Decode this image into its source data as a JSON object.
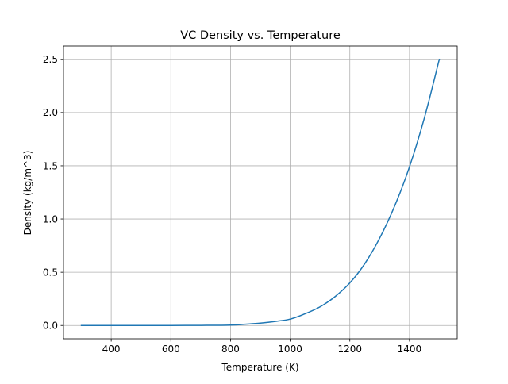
{
  "chart_data": {
    "type": "line",
    "title": "VC Density vs. Temperature",
    "xlabel": "Temperature (K)",
    "ylabel": "Density (kg/m^3)",
    "xlim": [
      240,
      1560
    ],
    "ylim": [
      -0.125,
      2.625
    ],
    "xticks": [
      400,
      600,
      800,
      1000,
      1200,
      1400
    ],
    "yticks": [
      0.0,
      0.5,
      1.0,
      1.5,
      2.0,
      2.5
    ],
    "xtick_labels": [
      "400",
      "600",
      "800",
      "1000",
      "1200",
      "1400"
    ],
    "ytick_labels": [
      "0.0",
      "0.5",
      "1.0",
      "1.5",
      "2.0",
      "2.5"
    ],
    "grid": true,
    "series": [
      {
        "color": "#1f77b4",
        "x": [
          300,
          400,
          500,
          600,
          700,
          800,
          850,
          900,
          950,
          1000,
          1050,
          1100,
          1150,
          1200,
          1250,
          1300,
          1350,
          1400,
          1450,
          1500
        ],
        "y": [
          0.0,
          0.0,
          0.0,
          0.0,
          0.001,
          0.004,
          0.012,
          0.022,
          0.038,
          0.06,
          0.11,
          0.175,
          0.27,
          0.4,
          0.58,
          0.82,
          1.12,
          1.49,
          1.95,
          2.5
        ]
      }
    ]
  }
}
